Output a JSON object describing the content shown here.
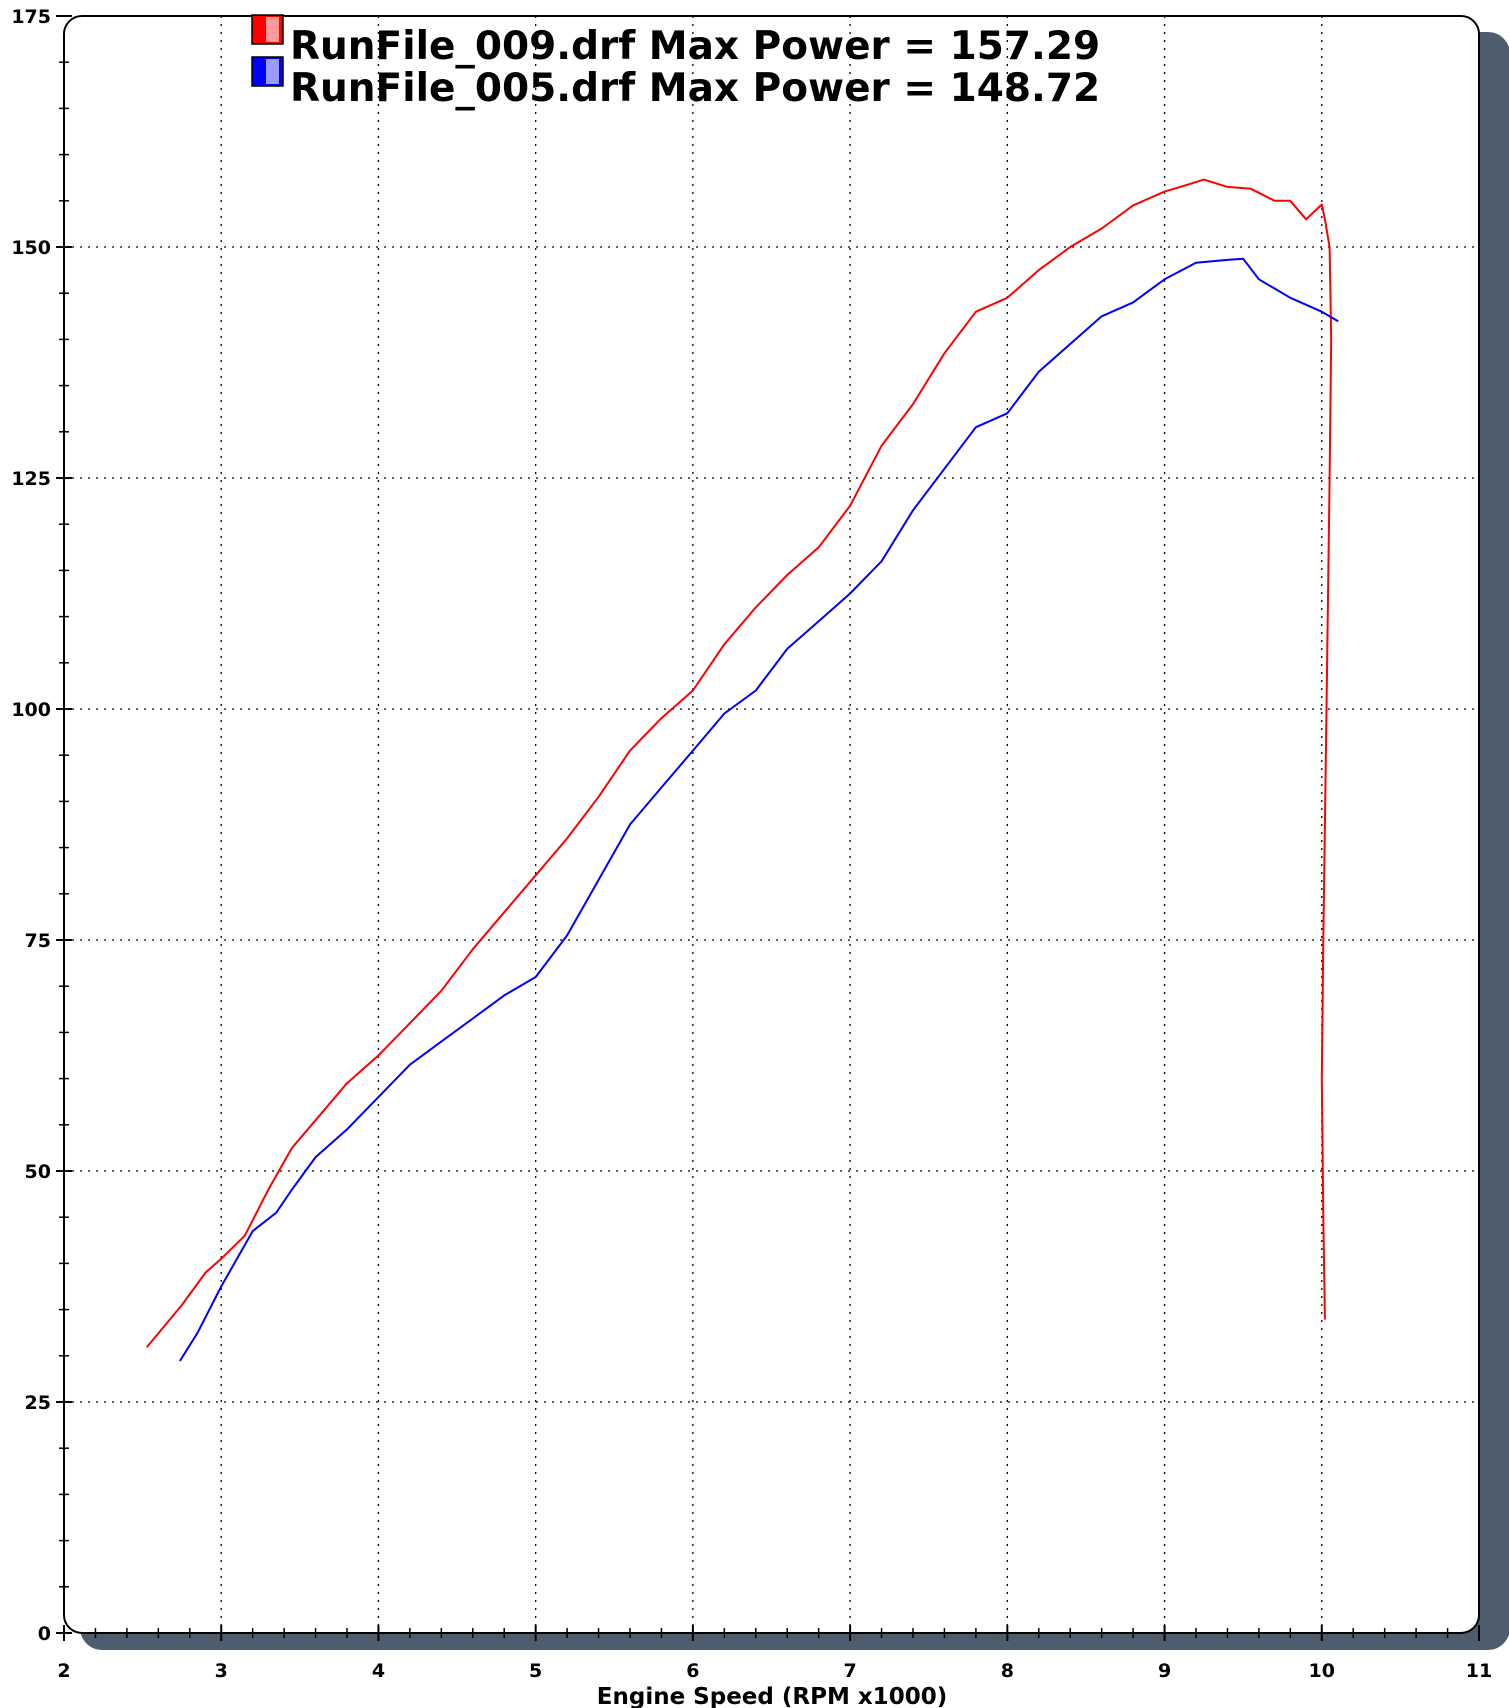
{
  "chart_data": {
    "type": "line",
    "title": "",
    "xlabel": "Engine Speed (RPM x1000)",
    "ylabel": "",
    "xlim": [
      2,
      11
    ],
    "ylim": [
      0,
      175
    ],
    "xticks": [
      2,
      3,
      4,
      5,
      6,
      7,
      8,
      9,
      10,
      11
    ],
    "yticks": [
      0,
      25,
      50,
      75,
      100,
      125,
      150,
      175
    ],
    "grid": true,
    "legend_position": "top-left",
    "colors": {
      "shadow": "#4e5d6e",
      "grid": "#000000",
      "frame": "#000000"
    },
    "series": [
      {
        "name": "RunFile_009.drf Max Power = 157.29",
        "color": "#ff0000",
        "points": [
          [
            2.53,
            31.0
          ],
          [
            2.75,
            35.5
          ],
          [
            2.9,
            39.0
          ],
          [
            3.0,
            40.5
          ],
          [
            3.15,
            43.0
          ],
          [
            3.3,
            48.0
          ],
          [
            3.45,
            52.5
          ],
          [
            3.6,
            55.5
          ],
          [
            3.8,
            59.5
          ],
          [
            4.0,
            62.5
          ],
          [
            4.2,
            66.0
          ],
          [
            4.4,
            69.5
          ],
          [
            4.6,
            74.0
          ],
          [
            4.8,
            78.0
          ],
          [
            5.0,
            82.0
          ],
          [
            5.2,
            86.0
          ],
          [
            5.4,
            90.5
          ],
          [
            5.6,
            95.5
          ],
          [
            5.8,
            99.0
          ],
          [
            6.0,
            102.0
          ],
          [
            6.2,
            107.0
          ],
          [
            6.4,
            111.0
          ],
          [
            6.6,
            114.5
          ],
          [
            6.8,
            117.5
          ],
          [
            7.0,
            122.0
          ],
          [
            7.2,
            128.5
          ],
          [
            7.4,
            133.0
          ],
          [
            7.6,
            138.5
          ],
          [
            7.8,
            143.0
          ],
          [
            8.0,
            144.5
          ],
          [
            8.2,
            147.5
          ],
          [
            8.4,
            150.0
          ],
          [
            8.6,
            152.0
          ],
          [
            8.8,
            154.5
          ],
          [
            9.0,
            156.0
          ],
          [
            9.1,
            156.5
          ],
          [
            9.25,
            157.29
          ],
          [
            9.4,
            156.5
          ],
          [
            9.55,
            156.3
          ],
          [
            9.7,
            155.0
          ],
          [
            9.8,
            155.0
          ],
          [
            9.9,
            153.0
          ],
          [
            9.95,
            153.8
          ],
          [
            10.0,
            154.6
          ],
          [
            10.02,
            153.0
          ],
          [
            10.05,
            150.0
          ],
          [
            10.06,
            140.0
          ],
          [
            10.05,
            125.0
          ],
          [
            10.03,
            100.0
          ],
          [
            10.01,
            75.0
          ],
          [
            10.0,
            60.0
          ],
          [
            10.01,
            45.0
          ],
          [
            10.02,
            34.0
          ]
        ]
      },
      {
        "name": "RunFile_005.drf Max Power = 148.72",
        "color": "#0000ff",
        "points": [
          [
            2.74,
            29.5
          ],
          [
            2.85,
            32.5
          ],
          [
            3.0,
            37.5
          ],
          [
            3.2,
            43.5
          ],
          [
            3.35,
            45.5
          ],
          [
            3.45,
            48.0
          ],
          [
            3.6,
            51.5
          ],
          [
            3.8,
            54.5
          ],
          [
            4.0,
            58.0
          ],
          [
            4.2,
            61.5
          ],
          [
            4.4,
            64.0
          ],
          [
            4.6,
            66.5
          ],
          [
            4.8,
            69.0
          ],
          [
            5.0,
            71.0
          ],
          [
            5.2,
            75.5
          ],
          [
            5.4,
            81.5
          ],
          [
            5.6,
            87.5
          ],
          [
            5.8,
            91.5
          ],
          [
            6.0,
            95.5
          ],
          [
            6.2,
            99.5
          ],
          [
            6.4,
            102.0
          ],
          [
            6.6,
            106.5
          ],
          [
            6.8,
            109.5
          ],
          [
            7.0,
            112.5
          ],
          [
            7.2,
            116.0
          ],
          [
            7.4,
            121.5
          ],
          [
            7.6,
            126.0
          ],
          [
            7.8,
            130.5
          ],
          [
            8.0,
            132.0
          ],
          [
            8.2,
            136.5
          ],
          [
            8.4,
            139.5
          ],
          [
            8.6,
            142.5
          ],
          [
            8.8,
            144.0
          ],
          [
            9.0,
            146.5
          ],
          [
            9.2,
            148.3
          ],
          [
            9.4,
            148.6
          ],
          [
            9.5,
            148.72
          ],
          [
            9.6,
            146.5
          ],
          [
            9.8,
            144.5
          ],
          [
            10.0,
            143.0
          ],
          [
            10.1,
            142.0
          ]
        ]
      }
    ]
  }
}
